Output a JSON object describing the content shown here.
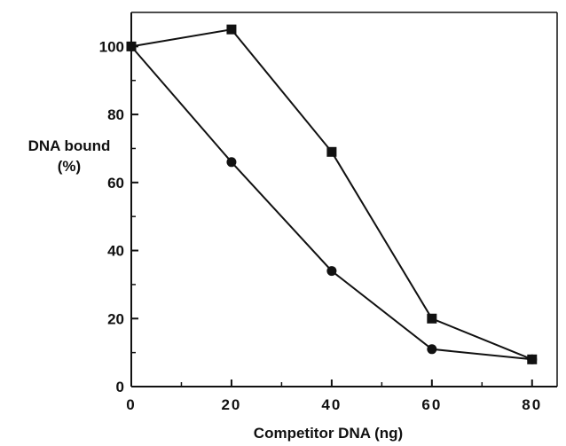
{
  "chart_data": {
    "type": "line",
    "title": "",
    "xlabel": "Competitor DNA (ng)",
    "ylabel_lines": [
      "DNA bound",
      "(%)"
    ],
    "xlim": [
      0,
      85
    ],
    "ylim": [
      0,
      110
    ],
    "x_ticks": [
      "0",
      "20",
      "40",
      "60",
      "80"
    ],
    "y_ticks": [
      "0",
      "20",
      "40",
      "60",
      "80",
      "100"
    ],
    "grid": false,
    "legend": "none",
    "series": [
      {
        "marker": "circle",
        "x": [
          0,
          20,
          40,
          60,
          80
        ],
        "y": [
          100,
          66,
          34,
          11,
          8
        ]
      },
      {
        "marker": "square",
        "x": [
          0,
          20,
          40,
          60,
          80
        ],
        "y": [
          100,
          105,
          69,
          20,
          8
        ]
      }
    ],
    "colors": {
      "line": "#111111",
      "marker": "#111111",
      "axis": "#111111"
    }
  }
}
